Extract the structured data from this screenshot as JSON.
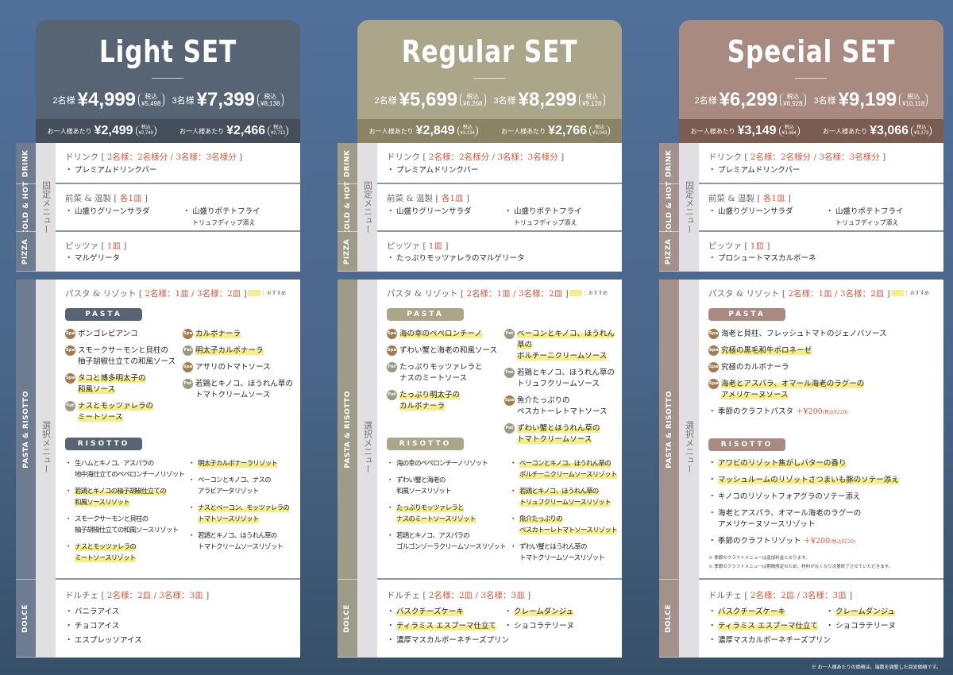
{
  "common": {
    "tabs": [
      "DRINK",
      "COLD & HOT",
      "PIZZA",
      "PASTA & RISOTTO",
      "DOLCE"
    ],
    "fixed_label": "固定メニュー",
    "select_label": "選択メニュー",
    "drink": {
      "label": "ドリンク",
      "bracket_open": "[",
      "rule": "2名様：2名様分 / 3名様：3名様分",
      "bracket_close": "]",
      "item": "プレミアムドリンクバー"
    },
    "starter": {
      "label": "前菜 & 温製",
      "bracket_open": "[",
      "rule": "各1皿",
      "bracket_close": "]",
      "item1": "山盛りグリーンサラダ",
      "item2": "山盛りポテトフライ",
      "item2_sub": "トリュフディップ添え"
    },
    "pizza": {
      "label": "ピッツァ",
      "bracket_open": "[",
      "rule": "1皿",
      "bracket_close": "]"
    },
    "pasta": {
      "label": "パスタ & リゾット",
      "bracket_open": "[",
      "rule": "2名様：1皿 / 3名様：2皿",
      "bracket_close": "]",
      "legend": "：おすすめ",
      "pasta_cat": "PASTA",
      "risotto_cat": "RISOTTO"
    },
    "dolce": {
      "label": "ドルチェ",
      "bracket_open": "[",
      "rule": "2名様：2皿 / 3名様：3皿",
      "bracket_close": "]"
    },
    "badge_colors": {
      "Spa": "#a27b4f",
      "Fet": "#9a9a84"
    },
    "highlight_color": "#f6ee8a",
    "rule_color": "#d4573a"
  },
  "sets": [
    {
      "title": "Light SET",
      "colors": {
        "header": "#566474",
        "band": "#454f5b",
        "tab": "#6d7c8e",
        "cat": "#566474"
      },
      "prices": [
        {
          "label": "2名様",
          "price": "¥4,999",
          "tax_label": "税込",
          "tax": "¥5,498"
        },
        {
          "label": "3名様",
          "price": "¥7,399",
          "tax_label": "税込",
          "tax": "¥8,138"
        }
      ],
      "per_person": [
        {
          "label": "お一人様あたり",
          "price": "¥2,499",
          "tax_label": "税込",
          "tax": "¥2,749"
        },
        {
          "label": "お一人様あたり",
          "price": "¥2,466",
          "tax_label": "税込",
          "tax": "¥2,713"
        }
      ],
      "pizza_item": "マルゲリータ",
      "pasta_left": [
        {
          "badge": "Spa",
          "text": "ボンゴレビアンコ"
        },
        {
          "badge": "Spa",
          "text": "スモークサーモンと貝柱の\n柚子胡椒仕立ての和風ソース"
        },
        {
          "badge": "Spa",
          "text": "タコと博多明太子の\n和風ソース",
          "hl": true
        },
        {
          "badge": "Fet",
          "text": "ナスとモッツァレラの\nミートソース",
          "hl": true
        }
      ],
      "pasta_right": [
        {
          "badge": "Spa",
          "text": "カルボナーラ",
          "hl": true
        },
        {
          "badge": "Fet",
          "text": "明太子カルボナーラ",
          "hl": true
        },
        {
          "badge": "Spa",
          "text": "アサリのトマトソース"
        },
        {
          "badge": "Fet",
          "text": "若鶏とキノコ、ほうれん草の\nトマトクリームソース"
        }
      ],
      "risotto_left": [
        {
          "text": "生ハムとキノコ、アスパラの\n地中海仕立てのペペロンチーノリゾット"
        },
        {
          "text": "若鶏とキノコの柚子胡椒仕立ての\n和風ソースリゾット",
          "hl": true
        },
        {
          "text": "スモークサーモンと貝柱の\n柚子胡椒仕立ての和風ソースリゾット"
        },
        {
          "text": "ナスとモッツァレラの\nミートソースリゾット",
          "hl": true
        }
      ],
      "risotto_right": [
        {
          "text": "明太子カルボナーラリゾット",
          "hl": true
        },
        {
          "text": "ベーコンとキノコ、ナスの\nアラビアータリゾット"
        },
        {
          "text": "ナスとベーコン、モッツァレラの\nトマトソースリゾット",
          "hl": true
        },
        {
          "text": "若鶏とキノコ、ほうれん草の\nトマトクリームソースリゾット"
        }
      ],
      "dolce_left": [
        {
          "text": "バニラアイス"
        },
        {
          "text": "チョコアイス"
        },
        {
          "text": "エスプレッソアイス"
        }
      ],
      "dolce_right": []
    },
    {
      "title": "Regular SET",
      "colors": {
        "header": "#aba58a",
        "band": "#8a8464",
        "tab": "#9f9b89",
        "cat": "#aba58a"
      },
      "prices": [
        {
          "label": "2名様",
          "price": "¥5,699",
          "tax_label": "税込",
          "tax": "¥6,268"
        },
        {
          "label": "3名様",
          "price": "¥8,299",
          "tax_label": "税込",
          "tax": "¥9,128"
        }
      ],
      "per_person": [
        {
          "label": "お一人様あたり",
          "price": "¥2,849",
          "tax_label": "税込",
          "tax": "¥3,134"
        },
        {
          "label": "お一人様あたり",
          "price": "¥2,766",
          "tax_label": "税込",
          "tax": "¥3,043"
        }
      ],
      "pizza_item": "たっぷりモッツァレラのマルゲリータ",
      "pasta_left": [
        {
          "badge": "Spa",
          "text": "海の幸のペペロンチーノ",
          "hl": true
        },
        {
          "badge": "Spa",
          "text": "ずわい蟹と海老の和風ソース"
        },
        {
          "badge": "Fet",
          "text": "たっぷりモッツァレラと\nナスのミートソース"
        },
        {
          "badge": "Fet",
          "text": "たっぷり明太子の\nカルボナーラ",
          "hl": true
        }
      ],
      "pasta_right": [
        {
          "badge": "Fet",
          "text": "ベーコンとキノコ、ほうれん草の\nポルチーニクリームソース",
          "hl": true
        },
        {
          "badge": "Fet",
          "text": "若鶏とキノコ、ほうれん草の\nトリュフクリームソース"
        },
        {
          "badge": "Spa",
          "text": "魚介たっぷりの\nペスカトーレトマトソース"
        },
        {
          "badge": "Fet",
          "text": "ずわい蟹とほうれん草の\nトマトクリームソース",
          "hl": true
        }
      ],
      "risotto_left": [
        {
          "text": "海の幸のペペロンチーノリゾット"
        },
        {
          "text": "ずわい蟹と海老の\n和風ソースリゾット"
        },
        {
          "text": "たっぷりモッツァレラと\nナスのミートソースリゾット",
          "hl": true
        },
        {
          "text": "若鶏とキノコ、アスパラの\nゴルゴンゾーラクリームソースリゾット"
        }
      ],
      "risotto_right": [
        {
          "text": "ベーコンとキノコ、ほうれん草の\nポルチーニクリームソースリゾット",
          "hl": true
        },
        {
          "text": "若鶏とキノコ、ほうれん草の\nトリュフクリームソースリゾット",
          "hl": true
        },
        {
          "text": "魚介たっぷりの\nペスカトーレトマトソースリゾット",
          "hl": true
        },
        {
          "text": "ずわい蟹とほうれん草の\nトマトクリームソースリゾット"
        }
      ],
      "dolce_left": [
        {
          "text": "バスクチーズケーキ",
          "hl": true
        },
        {
          "text": "ティラミス エスプーマ仕立て",
          "hl": true
        },
        {
          "text": "濃厚マスカルポーネチーズプリン"
        }
      ],
      "dolce_right": [
        {
          "text": "クレームダンジュ",
          "hl": true
        },
        {
          "text": "ショコラテリーヌ"
        }
      ]
    },
    {
      "title": "Special SET",
      "colors": {
        "header": "#a98a80",
        "band": "#7b5c52",
        "tab": "#a3928c",
        "cat": "#a98a80"
      },
      "prices": [
        {
          "label": "2名様",
          "price": "¥6,299",
          "tax_label": "税込",
          "tax": "¥6,928"
        },
        {
          "label": "3名様",
          "price": "¥9,199",
          "tax_label": "税込",
          "tax": "¥10,118"
        }
      ],
      "per_person": [
        {
          "label": "お一人様あたり",
          "price": "¥3,149",
          "tax_label": "税込",
          "tax": "¥3,464"
        },
        {
          "label": "お一人様あたり",
          "price": "¥3,066",
          "tax_label": "税込",
          "tax": "¥3,373"
        }
      ],
      "pizza_item": "プロシュートマスカルポーネ",
      "pasta_left": [
        {
          "badge": "Spa",
          "text": "海老と貝柱、フレッシュトマトのジェノバソース"
        },
        {
          "badge": "Spa",
          "text": "究極の黒毛和牛ボロネーゼ",
          "hl": true
        },
        {
          "badge": "Spa",
          "text": "究極のカルボナーラ"
        },
        {
          "badge": "Spa",
          "text": "海老とアスパラ、オマール海老のラグーの\nアメリケーヌソース",
          "hl": true
        },
        {
          "text": "季節のクラフトパスタ",
          "extra": "＋¥200",
          "extra_tax": "(税込¥220)"
        }
      ],
      "pasta_right": [],
      "risotto_left": [
        {
          "text": "アワビのリゾット焦がしバターの香り",
          "hl": true
        },
        {
          "text": "マッシュルームのリゾットさつまいも豚のソテー添え",
          "hl": true
        },
        {
          "text": "キノコのリゾットフォアグラのソテー添え"
        },
        {
          "text": "海老とアスパラ、オマール海老のラグーの\nアメリケーヌソースリゾット"
        },
        {
          "text": "季節のクラフトリゾット",
          "extra": "＋¥200",
          "extra_tax": "(税込¥220)"
        }
      ],
      "risotto_right": [],
      "notes": [
        "※ 季節のクラフトメニューは追加料金となります。",
        "※ 季節のクラフトメニューは期間限定のため、材料がなくなり次第終了させていただきます。"
      ],
      "dolce_left": [
        {
          "text": "バスクチーズケーキ",
          "hl": true
        },
        {
          "text": "ティラミス エスプーマ仕立て",
          "hl": true
        },
        {
          "text": "濃厚マスカルポーネチーズプリン"
        }
      ],
      "dolce_right": [
        {
          "text": "クレームダンジュ",
          "hl": true
        },
        {
          "text": "ショコラテリーヌ"
        }
      ]
    }
  ],
  "footnote": "※ お一人様あたりの価格は、端数を調整した目安価格です。"
}
